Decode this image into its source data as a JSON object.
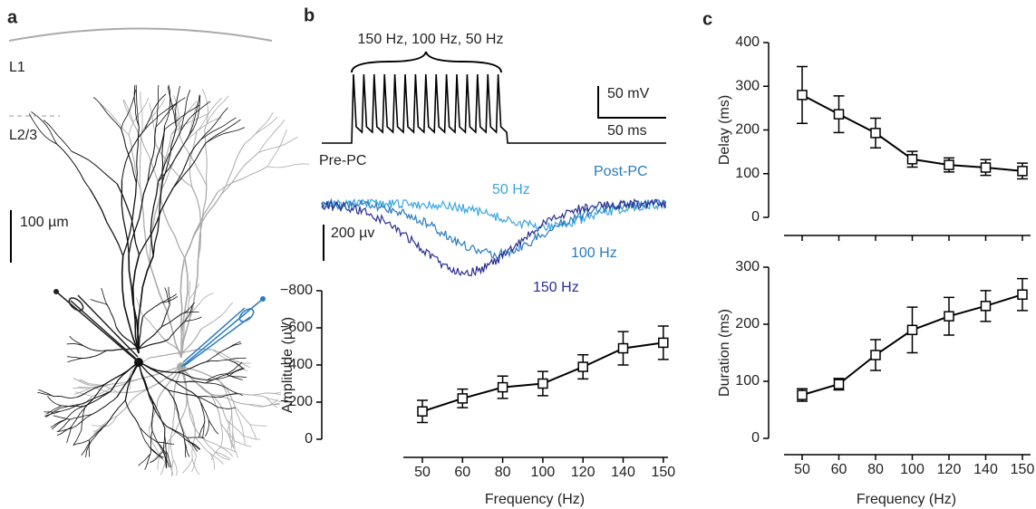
{
  "panel_a": {
    "label": "a",
    "layer_1": "L1",
    "layer_2_3": "L2/3",
    "scale_bar": "100 µm"
  },
  "panel_b": {
    "label": "b",
    "stimulus": "150 Hz, 100 Hz, 50 Hz",
    "scale_mv": "50 mV",
    "scale_ms": "50 ms",
    "pre": "Pre-PC",
    "post": "Post-PC",
    "trace_50": "50 Hz",
    "trace_100": "100 Hz",
    "trace_150": "150 Hz",
    "scale_uv": "200 µv"
  },
  "panel_c": {
    "label": "c"
  },
  "chart_data": [
    {
      "type": "line",
      "categories": [
        "50",
        "60",
        "80",
        "100",
        "120",
        "140",
        "150"
      ],
      "values": [
        -150,
        -220,
        -280,
        -300,
        -390,
        -490,
        -520
      ],
      "errors": [
        60,
        50,
        60,
        65,
        65,
        90,
        90
      ],
      "color": "#000000",
      "x_label": "Frequency (Hz)",
      "y_label": "Amplitude (µV)",
      "ylim": [
        0,
        -800
      ],
      "yticks": [
        0,
        {
          "value": -200,
          "label": "−200"
        },
        {
          "value": -400,
          "label": "−400"
        },
        {
          "value": -600,
          "label": "−600"
        },
        {
          "value": -800,
          "label": "−800"
        }
      ]
    },
    {
      "type": "line",
      "categories": [
        null,
        null,
        null,
        null,
        null,
        null,
        null
      ],
      "values": [
        280,
        236,
        193,
        133,
        120,
        114,
        106
      ],
      "errors": [
        65,
        42,
        34,
        18,
        16,
        18,
        18
      ],
      "color": "#000000",
      "y_label": "Delay (ms)",
      "ylim": [
        0,
        400
      ],
      "yticks": [
        0,
        100,
        200,
        300,
        400
      ]
    },
    {
      "type": "line",
      "categories": [
        "50",
        "60",
        "80",
        "100",
        "120",
        "140",
        "150"
      ],
      "values": [
        76,
        95,
        146,
        190,
        214,
        232,
        252
      ],
      "errors": [
        11,
        10,
        27,
        40,
        33,
        27,
        28
      ],
      "color": "#000000",
      "x_label": "Frequency (Hz)",
      "y_label": "Duration (ms)",
      "ylim": [
        0,
        300
      ],
      "yticks": [
        0,
        100,
        200,
        300
      ]
    }
  ]
}
